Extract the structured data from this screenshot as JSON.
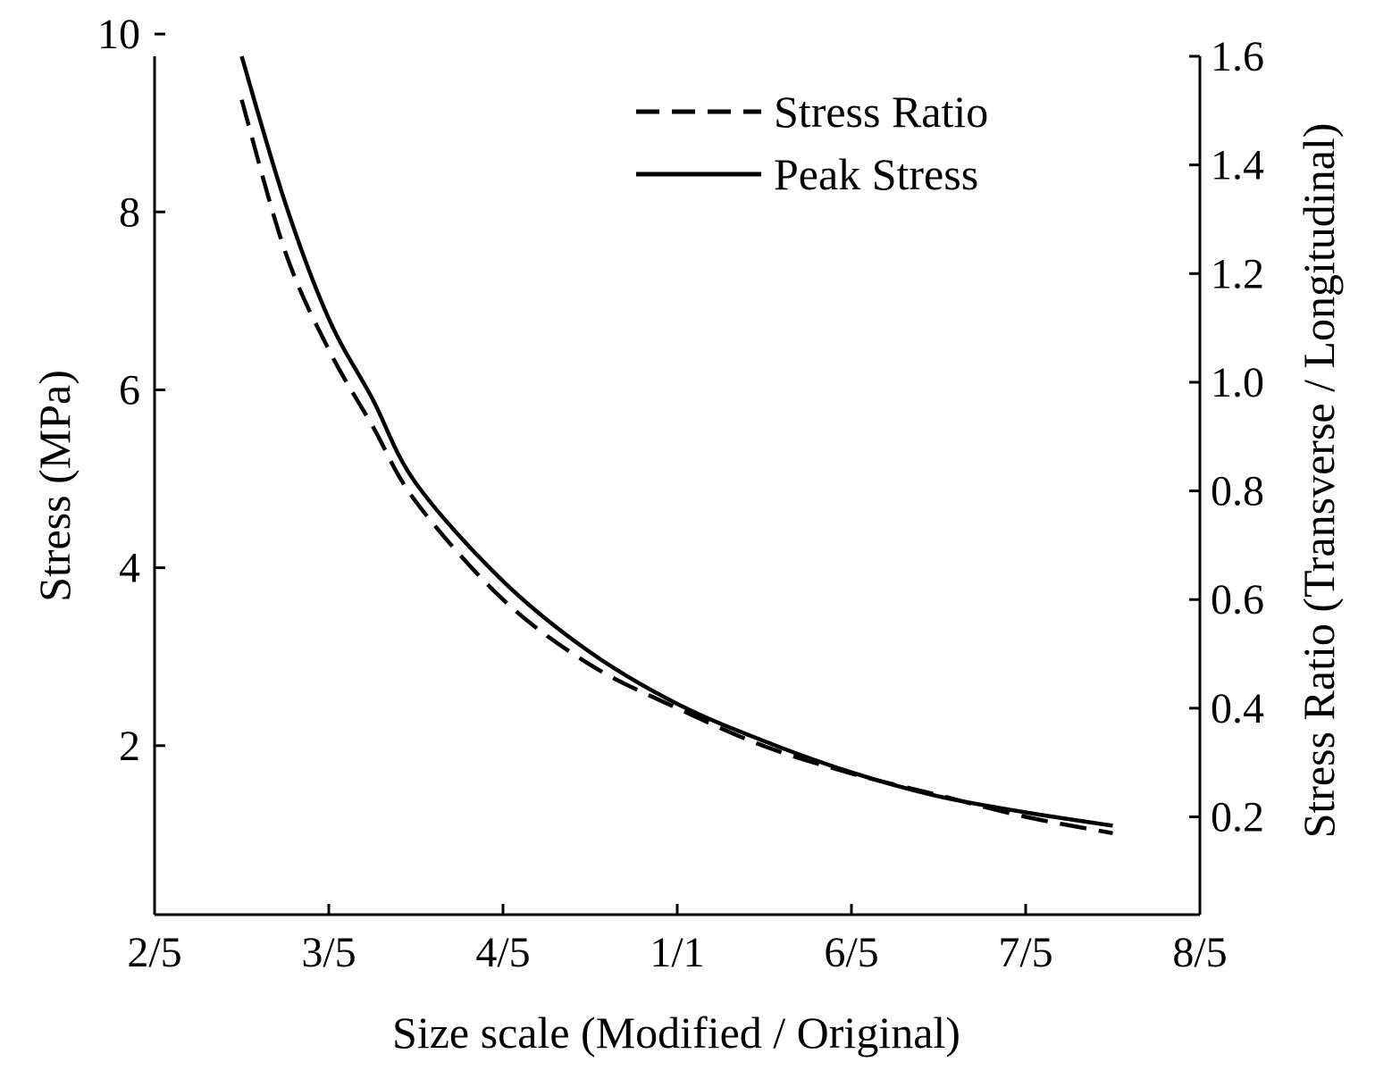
{
  "chart_data": {
    "type": "line",
    "title": "",
    "xlabel": "Size scale (Modified / Original)",
    "ylabel": "Stress (MPa)",
    "y2label": "Stress Ratio (Transverse / Longitudinal)",
    "xlim": [
      0.4,
      1.6
    ],
    "ylim": [
      0.1,
      9.75
    ],
    "y2lim": [
      0.02,
      1.6
    ],
    "x_ticks": [
      0.4,
      0.6,
      0.8,
      1.0,
      1.2,
      1.4,
      1.6
    ],
    "x_tick_labels": [
      "2/5",
      "3/5",
      "4/5",
      "1/1",
      "6/5",
      "7/5",
      "8/5"
    ],
    "y_ticks": [
      2,
      4,
      6,
      8,
      10
    ],
    "y_tick_labels": [
      "2",
      "4",
      "6",
      "8",
      "10"
    ],
    "y2_ticks": [
      0.2,
      0.4,
      0.6,
      0.8,
      1.0,
      1.2,
      1.4,
      1.6
    ],
    "y2_tick_labels": [
      "0.2",
      "0.4",
      "0.6",
      "0.8",
      "1.0",
      "1.2",
      "1.4",
      "1.6"
    ],
    "legend_position": "top-right",
    "series": [
      {
        "name": "Stress Ratio",
        "axis": "right",
        "style": "dashed",
        "x": [
          0.5,
          0.55,
          0.6,
          0.65,
          0.7,
          0.8,
          0.9,
          1.0,
          1.1,
          1.2,
          1.3,
          1.4,
          1.5
        ],
        "values": [
          1.52,
          1.24,
          1.06,
          0.92,
          0.78,
          0.6,
          0.48,
          0.4,
          0.33,
          0.28,
          0.24,
          0.2,
          0.17
        ]
      },
      {
        "name": "Peak Stress",
        "axis": "left",
        "style": "solid",
        "x": [
          0.5,
          0.55,
          0.6,
          0.65,
          0.7,
          0.8,
          0.9,
          1.0,
          1.1,
          1.2,
          1.3,
          1.4,
          1.5
        ],
        "values": [
          9.75,
          8.1,
          6.8,
          5.9,
          4.95,
          3.85,
          3.05,
          2.47,
          2.05,
          1.7,
          1.43,
          1.25,
          1.1
        ]
      }
    ]
  }
}
